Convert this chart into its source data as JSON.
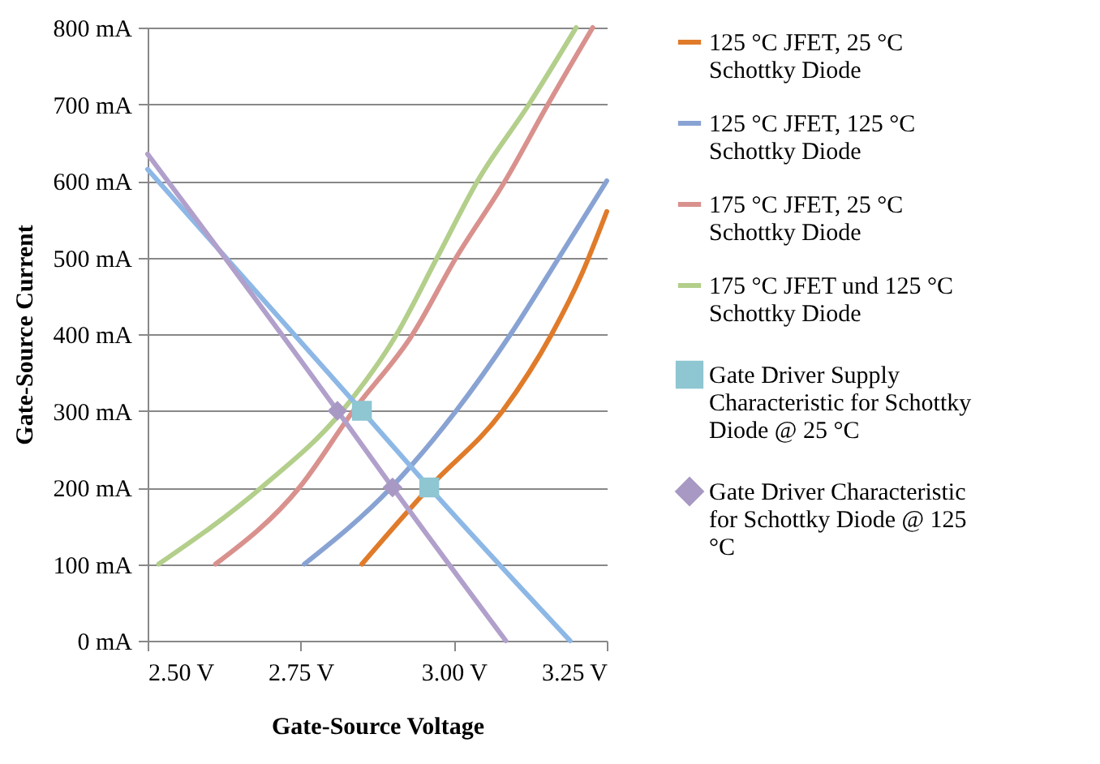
{
  "chart_data": {
    "type": "line",
    "xlabel": "Gate-Source Voltage",
    "ylabel": "Gate-Source Current",
    "xlim": [
      2.5,
      3.25
    ],
    "xticks": [
      {
        "value": 2.5,
        "label": "2.50 V"
      },
      {
        "value": 2.75,
        "label": "2.75 V"
      },
      {
        "value": 3,
        "label": "3.00 V"
      },
      {
        "value": 3.25,
        "label": "3.25 V"
      }
    ],
    "ylim": [
      0,
      800
    ],
    "yticks": [
      {
        "value": 0,
        "label": "0 mA"
      },
      {
        "value": 100,
        "label": "100 mA"
      },
      {
        "value": 200,
        "label": "200 mA"
      },
      {
        "value": 300,
        "label": "300 mA"
      },
      {
        "value": 400,
        "label": "400 mA"
      },
      {
        "value": 500,
        "label": "500 mA"
      },
      {
        "value": 600,
        "label": "600 mA"
      },
      {
        "value": 700,
        "label": "700 mA"
      },
      {
        "value": 800,
        "label": "800 mA"
      }
    ],
    "grid": "y",
    "legend": "right",
    "series": [
      {
        "name": "125 °C JFET, 25 °C Schottky Diode",
        "color": "#e07b2a",
        "marker": "none",
        "x": [
          2.85,
          2.96,
          3.08,
          3.16,
          3.21,
          3.25
        ],
        "values": [
          100,
          200,
          300,
          400,
          480,
          560
        ]
      },
      {
        "name": "125 °C JFET, 125 °C Schottky Diode",
        "color": "#88a3d3",
        "marker": "none",
        "x": [
          2.756,
          2.898,
          3.004,
          3.093,
          3.172,
          3.25
        ],
        "values": [
          100,
          200,
          300,
          400,
          500,
          600
        ]
      },
      {
        "name": "175 °C JFET, 25 °C Schottky Diode",
        "color": "#d9918d",
        "marker": "none",
        "x": [
          2.611,
          2.748,
          2.836,
          2.933,
          3.004,
          3.084,
          3.154,
          3.227
        ],
        "values": [
          100,
          200,
          300,
          400,
          500,
          600,
          700,
          800
        ]
      },
      {
        "name": "175 °C JFET und 125 °C Schottky Diode",
        "color": "#b3cf8b",
        "marker": "none",
        "x": [
          2.518,
          2.686,
          2.818,
          2.907,
          2.973,
          3.039,
          3.123,
          3.2
        ],
        "values": [
          100,
          200,
          300,
          400,
          500,
          600,
          700,
          800
        ]
      },
      {
        "color": "#8db8e6",
        "marker": "none",
        "x": [
          2.5,
          2.85,
          2.96,
          3.19
        ],
        "values": [
          615,
          300,
          200,
          0
        ]
      },
      {
        "color": "#b1a0cb",
        "marker": "none",
        "x": [
          2.5,
          2.81,
          2.9,
          3.085
        ],
        "values": [
          635,
          300,
          200,
          0
        ]
      },
      {
        "name": "Gate Driver Supply Characteristic for Schottky Diode @ 25 °C",
        "type": "scatter",
        "color": "#8ec6d2",
        "marker": "square",
        "x": [
          2.85,
          2.96
        ],
        "values": [
          300,
          200
        ]
      },
      {
        "name": "Gate Driver Characteristic for Schottky Diode @ 125 °C",
        "type": "scatter",
        "color": "#a898c4",
        "marker": "diamond",
        "x": [
          2.81,
          2.9
        ],
        "values": [
          300,
          200
        ]
      }
    ]
  }
}
